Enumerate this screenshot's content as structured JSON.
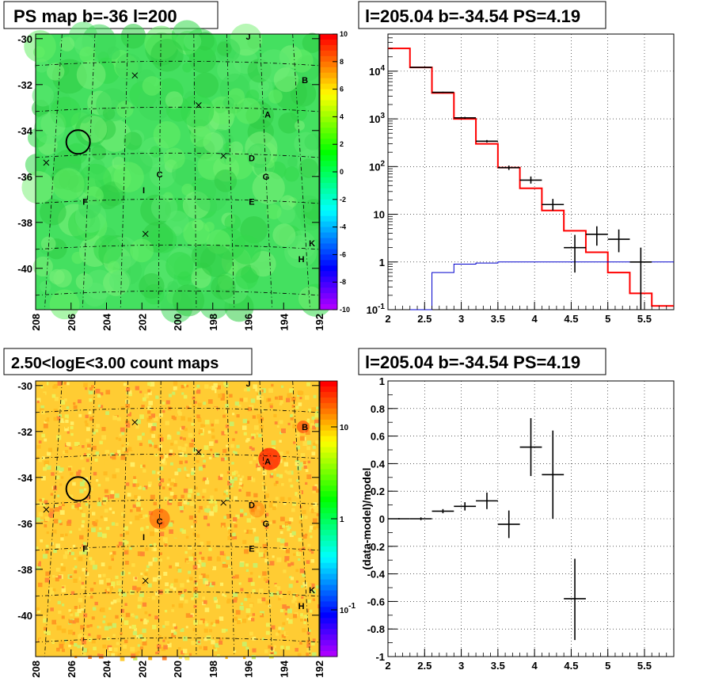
{
  "panels": [
    {
      "title": "PS map b=-36 l=200",
      "chart_data": {
        "type": "heatmap",
        "title": "PS map b=-36 l=200",
        "xlim": [
          208,
          192
        ],
        "ylim": [
          -41.8,
          -29.8
        ],
        "x_ticks": [
          "208",
          "206",
          "204",
          "202",
          "200",
          "198",
          "196",
          "194",
          "192"
        ],
        "y_ticks": [
          "-30",
          "-32",
          "-34",
          "-36",
          "-38",
          "-40"
        ],
        "colorbar": {
          "range": [
            -10,
            10
          ],
          "ticks": [
            "10",
            "8",
            "6",
            "4",
            "2",
            "0",
            "-2",
            "-4",
            "-6",
            "-8",
            "-10"
          ]
        },
        "circle": {
          "l": 205.6,
          "b": -34.5
        },
        "crosses": [
          {
            "l": 207.4,
            "b": -35.4
          },
          {
            "l": 202.4,
            "b": -31.6
          },
          {
            "l": 198.8,
            "b": -32.9
          },
          {
            "l": 197.4,
            "b": -35.1
          },
          {
            "l": 201.8,
            "b": -38.5
          }
        ],
        "sources": [
          {
            "label": "J",
            "l": 196.0,
            "b": -29.9
          },
          {
            "label": "B",
            "l": 192.8,
            "b": -31.8
          },
          {
            "label": "A",
            "l": 194.9,
            "b": -33.3
          },
          {
            "label": "D",
            "l": 195.8,
            "b": -35.2
          },
          {
            "label": "C",
            "l": 201.0,
            "b": -35.9
          },
          {
            "label": "G",
            "l": 195.0,
            "b": -36.0
          },
          {
            "label": "I",
            "l": 201.9,
            "b": -36.6
          },
          {
            "label": "F",
            "l": 205.2,
            "b": -37.1
          },
          {
            "label": "E",
            "l": 195.8,
            "b": -37.1
          },
          {
            "label": "K",
            "l": 192.4,
            "b": -38.9
          },
          {
            "label": "H",
            "l": 193.0,
            "b": -39.6
          }
        ]
      }
    },
    {
      "title": "l=205.04 b=-34.54 PS=4.19",
      "chart_data": {
        "type": "line",
        "title": "l=205.04 b=-34.54 PS=4.19",
        "xlim": [
          2,
          5.9
        ],
        "ylim": [
          0.1,
          60000
        ],
        "y_scale": "log",
        "x_ticks": [
          "2",
          "2.5",
          "3",
          "3.5",
          "4",
          "4.5",
          "5",
          "5.5"
        ],
        "y_ticks": [
          "10^-1",
          "1",
          "10",
          "10^2",
          "10^3",
          "10^4"
        ],
        "grid": true,
        "series": [
          {
            "color": "#ff0000",
            "edges": [
              2.0,
              2.3,
              2.6,
              2.9,
              3.2,
              3.5,
              3.8,
              4.1,
              4.4,
              4.7,
              5.0,
              5.3,
              5.6,
              5.9
            ],
            "values": [
              30000,
              12000,
              3500,
              1000,
              300,
              95,
              35,
              12,
              4.5,
              1.6,
              0.6,
              0.22,
              0.12
            ]
          },
          {
            "color": "#0000cc",
            "edges": [
              2.3,
              2.6,
              2.9,
              3.2,
              3.5,
              3.8,
              4.1,
              4.4,
              4.7,
              5.0,
              5.3,
              5.6,
              5.9
            ],
            "values": [
              0.1,
              0.6,
              0.9,
              0.95,
              1,
              1,
              1,
              1,
              1,
              1,
              1,
              1
            ]
          },
          {
            "color": "#000000",
            "points": [
              {
                "x": 2.45,
                "y": 12000,
                "xl": 2.3,
                "xh": 2.6,
                "lo": 12000,
                "hi": 12000
              },
              {
                "x": 2.75,
                "y": 3600,
                "xl": 2.6,
                "xh": 2.9,
                "lo": 3500,
                "hi": 3700
              },
              {
                "x": 3.05,
                "y": 1050,
                "xl": 2.9,
                "xh": 3.2,
                "lo": 1000,
                "hi": 1100
              },
              {
                "x": 3.35,
                "y": 340,
                "xl": 3.2,
                "xh": 3.5,
                "lo": 320,
                "hi": 360
              },
              {
                "x": 3.65,
                "y": 95,
                "xl": 3.5,
                "xh": 3.8,
                "lo": 85,
                "hi": 105
              },
              {
                "x": 3.95,
                "y": 52,
                "xl": 3.8,
                "xh": 4.1,
                "lo": 44,
                "hi": 62
              },
              {
                "x": 4.25,
                "y": 16,
                "xl": 4.1,
                "xh": 4.4,
                "lo": 12,
                "hi": 21
              },
              {
                "x": 4.55,
                "y": 2,
                "xl": 4.4,
                "xh": 4.7,
                "lo": 0.6,
                "hi": 3.7
              },
              {
                "x": 4.85,
                "y": 3.8,
                "xl": 4.7,
                "xh": 5.0,
                "lo": 2.2,
                "hi": 5.6
              },
              {
                "x": 5.15,
                "y": 3.0,
                "xl": 5.0,
                "xh": 5.3,
                "lo": 1.6,
                "hi": 4.8
              },
              {
                "x": 5.45,
                "y": 1.0,
                "xl": 5.3,
                "xh": 5.6,
                "lo": 0.1,
                "hi": 2.0
              }
            ]
          }
        ]
      }
    },
    {
      "title": "2.50<logE<3.00 count maps",
      "chart_data": {
        "type": "heatmap",
        "title": "2.50<logE<3.00 count maps",
        "xlim": [
          208,
          192
        ],
        "ylim": [
          -41.8,
          -29.8
        ],
        "x_ticks": [
          "208",
          "206",
          "204",
          "202",
          "200",
          "198",
          "196",
          "194",
          "192"
        ],
        "y_ticks": [
          "-30",
          "-32",
          "-34",
          "-36",
          "-38",
          "-40"
        ],
        "colorbar": {
          "scale": "log",
          "ticks": [
            "10",
            "1",
            "10^-1"
          ]
        },
        "circle": {
          "l": 205.6,
          "b": -34.5
        },
        "crosses": [
          {
            "l": 207.4,
            "b": -35.4
          },
          {
            "l": 202.4,
            "b": -31.6
          },
          {
            "l": 198.8,
            "b": -32.9
          },
          {
            "l": 197.4,
            "b": -35.1
          },
          {
            "l": 201.8,
            "b": -38.5
          }
        ],
        "sources": [
          {
            "label": "J",
            "l": 196.0,
            "b": -29.9
          },
          {
            "label": "B",
            "l": 192.8,
            "b": -31.8
          },
          {
            "label": "A",
            "l": 194.9,
            "b": -33.3
          },
          {
            "label": "D",
            "l": 195.8,
            "b": -35.2
          },
          {
            "label": "C",
            "l": 201.0,
            "b": -35.9
          },
          {
            "label": "G",
            "l": 195.0,
            "b": -36.0
          },
          {
            "label": "I",
            "l": 201.9,
            "b": -36.6
          },
          {
            "label": "F",
            "l": 205.2,
            "b": -37.1
          },
          {
            "label": "E",
            "l": 195.8,
            "b": -37.1
          },
          {
            "label": "K",
            "l": 192.4,
            "b": -38.9
          },
          {
            "label": "H",
            "l": 193.0,
            "b": -39.6
          }
        ]
      }
    },
    {
      "title": "l=205.04 b=-34.54 PS=4.19",
      "chart_data": {
        "type": "scatter",
        "title": "l=205.04 b=-34.54 PS=4.19",
        "ylabel": "(data-model)/model",
        "xlim": [
          2,
          5.9
        ],
        "ylim": [
          -1,
          1
        ],
        "x_ticks": [
          "2",
          "2.5",
          "3",
          "3.5",
          "4",
          "4.5",
          "5",
          "5.5"
        ],
        "y_ticks": [
          "1",
          "0.8",
          "0.6",
          "0.4",
          "0.2",
          "0",
          "-0.2",
          "-0.4",
          "-0.6",
          "-0.8",
          "-1"
        ],
        "grid": true,
        "points": [
          {
            "x": 2.15,
            "y": 0.0,
            "xl": 2.0,
            "xh": 2.3,
            "lo": -0.005,
            "hi": 0.005
          },
          {
            "x": 2.45,
            "y": 0.0,
            "xl": 2.3,
            "xh": 2.6,
            "lo": -0.01,
            "hi": 0.01
          },
          {
            "x": 2.75,
            "y": 0.055,
            "xl": 2.6,
            "xh": 2.9,
            "lo": 0.04,
            "hi": 0.07
          },
          {
            "x": 3.05,
            "y": 0.09,
            "xl": 2.9,
            "xh": 3.2,
            "lo": 0.06,
            "hi": 0.12
          },
          {
            "x": 3.35,
            "y": 0.13,
            "xl": 3.2,
            "xh": 3.5,
            "lo": 0.07,
            "hi": 0.19
          },
          {
            "x": 3.65,
            "y": -0.04,
            "xl": 3.5,
            "xh": 3.8,
            "lo": -0.14,
            "hi": 0.06
          },
          {
            "x": 3.95,
            "y": 0.52,
            "xl": 3.8,
            "xh": 4.1,
            "lo": 0.31,
            "hi": 0.73
          },
          {
            "x": 4.25,
            "y": 0.32,
            "xl": 4.1,
            "xh": 4.4,
            "lo": 0.0,
            "hi": 0.64
          },
          {
            "x": 4.55,
            "y": -0.58,
            "xl": 4.4,
            "xh": 4.7,
            "lo": -0.88,
            "hi": -0.29
          }
        ]
      }
    }
  ]
}
